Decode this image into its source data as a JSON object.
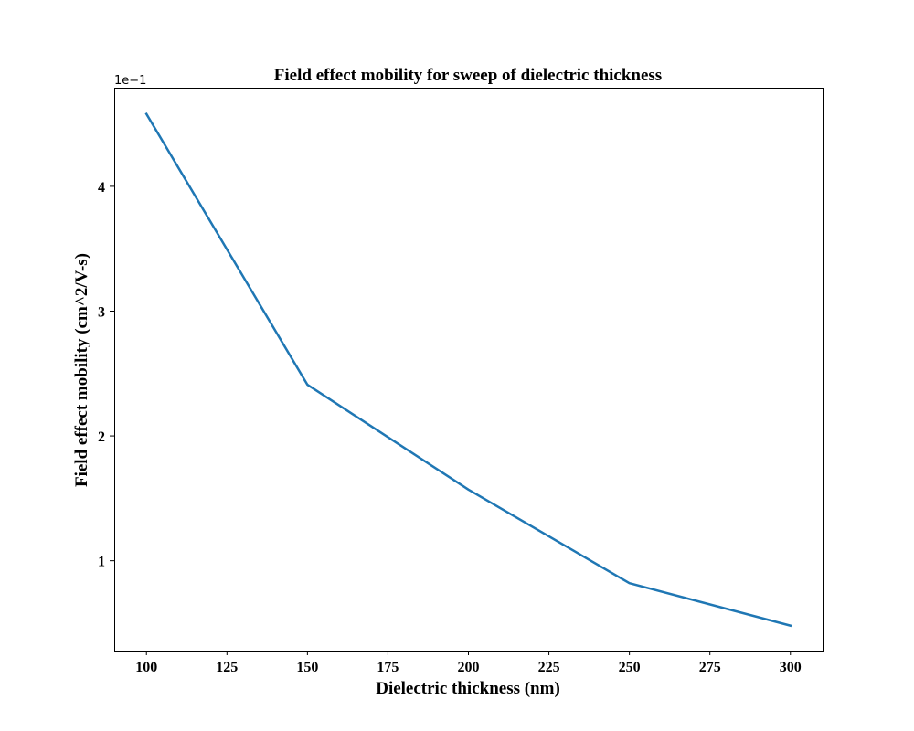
{
  "chart_data": {
    "type": "line",
    "title": "Field effect mobility for sweep of dielectric thickness",
    "xlabel": "Dielectric thickness (nm)",
    "ylabel": "Field effect mobility (cm^2/V-s)",
    "y_offset_label": "1e−1",
    "x": [
      100,
      150,
      200,
      250,
      300
    ],
    "series": [
      {
        "values": [
          4.58,
          2.41,
          1.57,
          0.82,
          0.48
        ],
        "color": "#1f77b4"
      }
    ],
    "xlim": [
      90,
      310
    ],
    "ylim": [
      0.28,
      4.79
    ],
    "xticks": [
      100,
      125,
      150,
      175,
      200,
      225,
      250,
      275,
      300
    ],
    "xtick_labels": [
      "100",
      "125",
      "150",
      "175",
      "200",
      "225",
      "250",
      "275",
      "300"
    ],
    "yticks": [
      1,
      2,
      3,
      4
    ],
    "ytick_labels": [
      "1",
      "2",
      "3",
      "4"
    ],
    "grid": false,
    "legend": "none"
  }
}
